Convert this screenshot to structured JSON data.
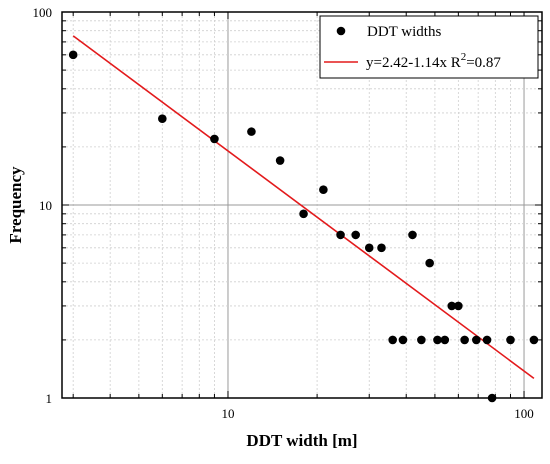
{
  "chart_data": {
    "type": "scatter",
    "title": "",
    "xlabel": "DDT width [m]",
    "ylabel": "Frequency",
    "xscale": "log",
    "yscale": "log",
    "xlim": [
      2.75,
      115
    ],
    "ylim": [
      1,
      100
    ],
    "x_ticks": [
      {
        "value": 10,
        "label": "10"
      },
      {
        "value": 100,
        "label": "100"
      }
    ],
    "y_ticks": [
      {
        "value": 1,
        "label": "1"
      },
      {
        "value": 10,
        "label": "10"
      },
      {
        "value": 100,
        "label": "100"
      }
    ],
    "grid": true,
    "legend_position": "top-right",
    "series": [
      {
        "name": "DDT widths",
        "kind": "scatter",
        "color": "#000000",
        "points": [
          {
            "x": 3,
            "y": 60
          },
          {
            "x": 6,
            "y": 28
          },
          {
            "x": 9,
            "y": 22
          },
          {
            "x": 12,
            "y": 24
          },
          {
            "x": 15,
            "y": 17
          },
          {
            "x": 18,
            "y": 9
          },
          {
            "x": 21,
            "y": 12
          },
          {
            "x": 24,
            "y": 7
          },
          {
            "x": 27,
            "y": 7
          },
          {
            "x": 30,
            "y": 6
          },
          {
            "x": 33,
            "y": 6
          },
          {
            "x": 36,
            "y": 2
          },
          {
            "x": 39,
            "y": 2
          },
          {
            "x": 42,
            "y": 7
          },
          {
            "x": 45,
            "y": 2
          },
          {
            "x": 48,
            "y": 5
          },
          {
            "x": 51,
            "y": 2
          },
          {
            "x": 54,
            "y": 2
          },
          {
            "x": 57,
            "y": 3
          },
          {
            "x": 60,
            "y": 3
          },
          {
            "x": 63,
            "y": 2
          },
          {
            "x": 69,
            "y": 2
          },
          {
            "x": 75,
            "y": 2
          },
          {
            "x": 78,
            "y": 1
          },
          {
            "x": 90,
            "y": 2
          },
          {
            "x": 108,
            "y": 2
          }
        ]
      },
      {
        "name": "y=2.42-1.14x R",
        "name_superscript": "2",
        "name_suffix": "=0.87",
        "kind": "line",
        "color": "#e31a1c",
        "intercept": 2.42,
        "slope": -1.14,
        "x_range": [
          3,
          108
        ]
      }
    ]
  }
}
